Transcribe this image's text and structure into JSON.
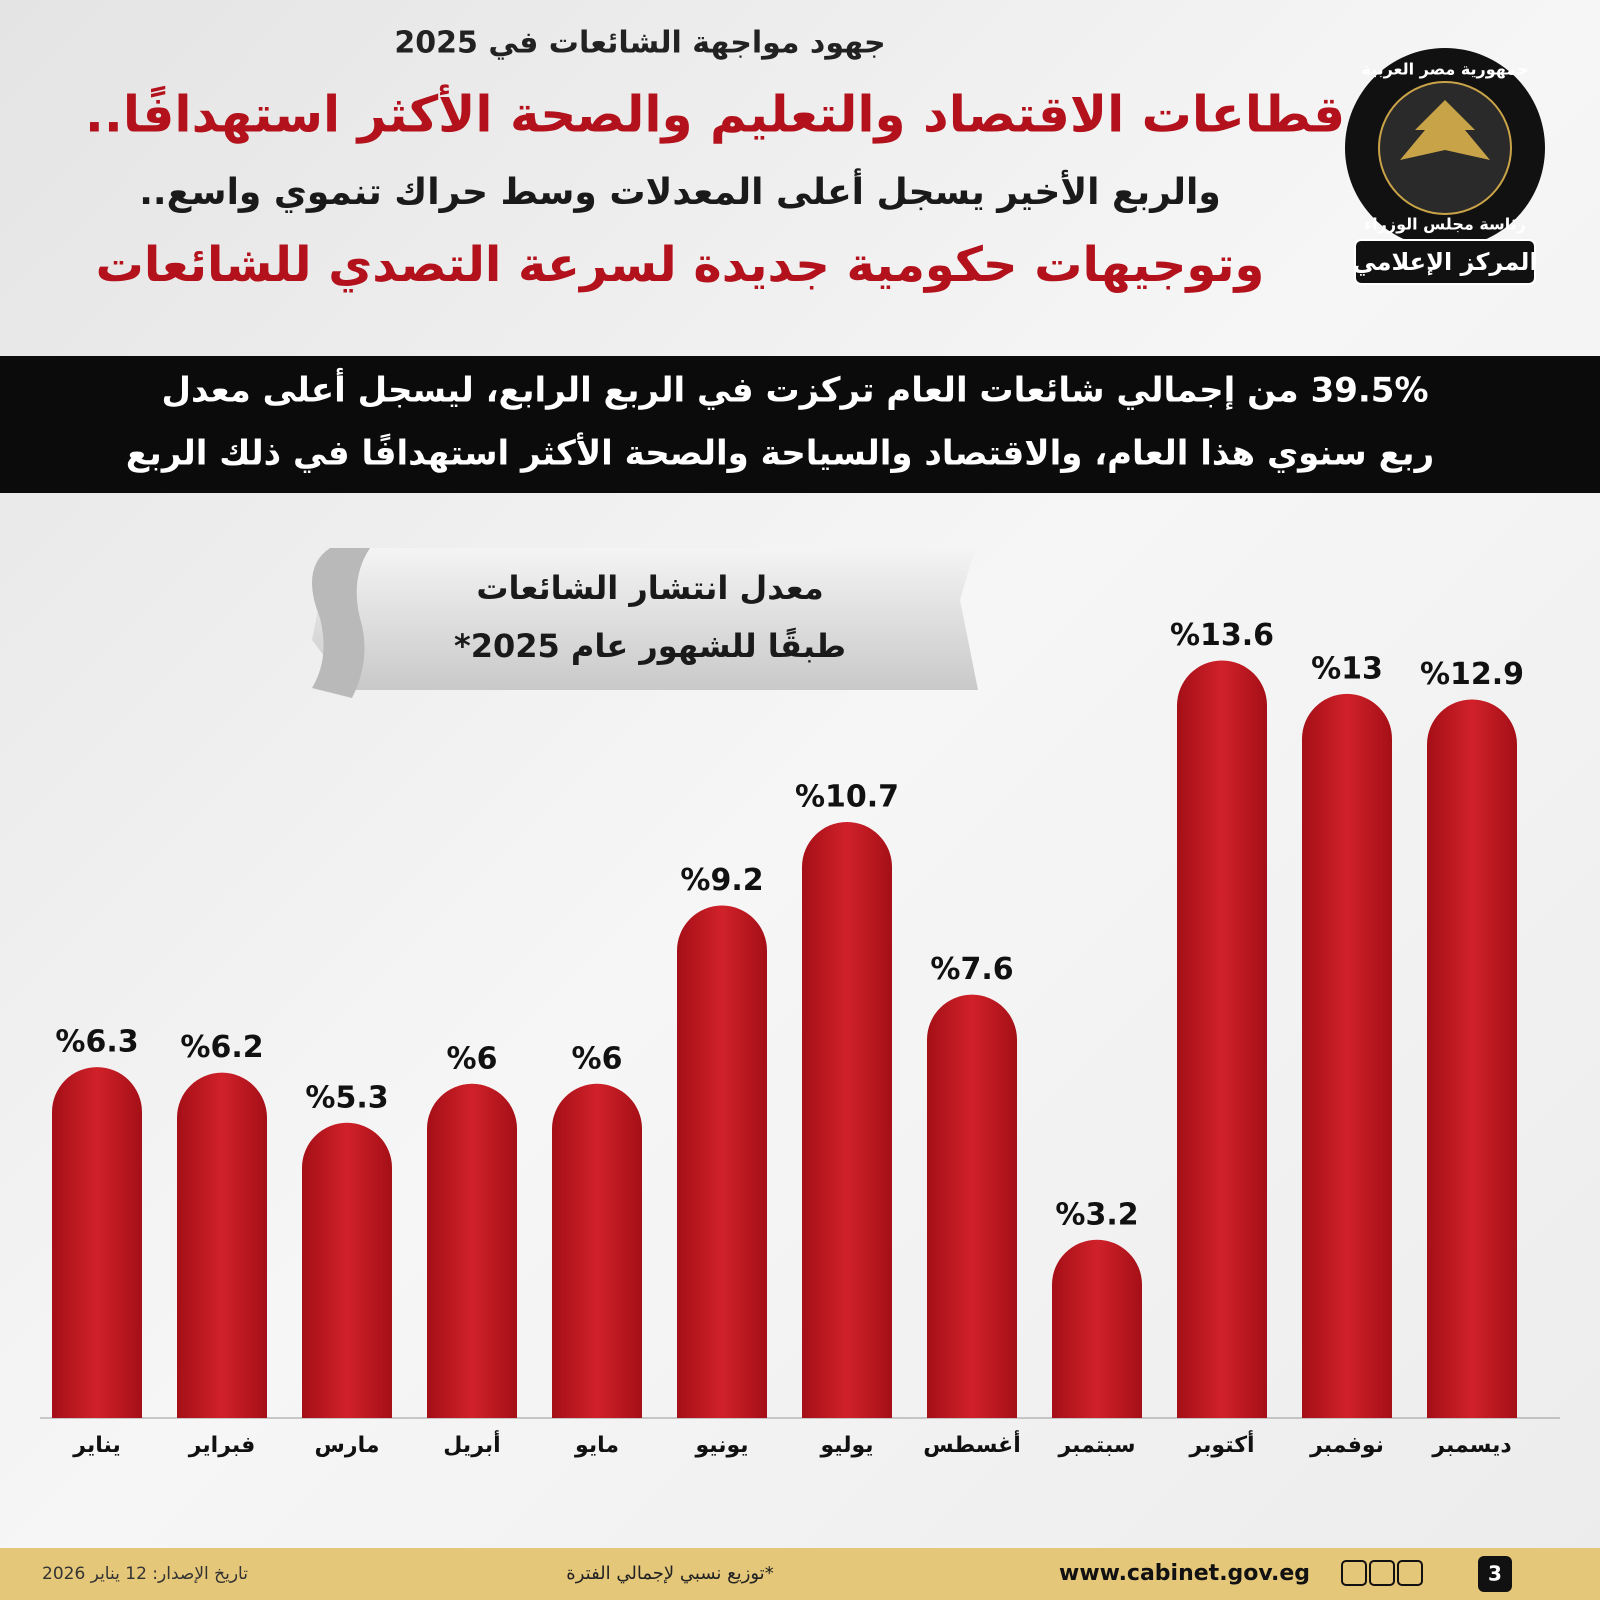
{
  "header": {
    "kicker": "جهود مواجهة الشائعات في 2025",
    "title": "قطاعات الاقتصاد والتعليم والصحة الأكثر استهدافًا..",
    "subtitle": "والربع الأخير يسجل أعلى المعدلات وسط حراك تنموي واسع..",
    "title2": "وتوجيهات حكومية جديدة لسرعة التصدي للشائعات"
  },
  "logo": {
    "top": "جمهورية مصر العربية",
    "ring": "رئاسة مجلس الوزراء",
    "badge": "المركز الإعلامي"
  },
  "summary": {
    "lines": [
      "39.5% من إجمالي شائعات العام تركزت في الربع الرابع، ليسجل أعلى معدل",
      "ربع سنوي هذا العام، والاقتصاد والسياحة والصحة الأكثر استهدافًا في ذلك الربع"
    ]
  },
  "chart_data": {
    "type": "bar",
    "title": "معدل انتشار الشائعات",
    "subtitle": "طبقًا للشهور عام 2025*",
    "categories": [
      "يناير",
      "فبراير",
      "مارس",
      "أبريل",
      "مايو",
      "يونيو",
      "يوليو",
      "أغسطس",
      "سبتمبر",
      "أكتوبر",
      "نوفمبر",
      "ديسمبر"
    ],
    "values": [
      6.3,
      6.2,
      5.3,
      6,
      6,
      9.2,
      10.7,
      7.6,
      3.2,
      13.6,
      13,
      12.9
    ],
    "value_labels": [
      "%6.3",
      "%6.2",
      "%5.3",
      "%6",
      "%6",
      "%9.2",
      "%10.7",
      "%7.6",
      "%3.2",
      "%13.6",
      "%13",
      "%12.9"
    ],
    "color": "#c0161f"
  },
  "footer": {
    "page": "3",
    "url": "www.cabinet.gov.eg",
    "note": "*توزيع نسبي لإجمالي الفترة",
    "date": "تاريخ الإصدار: 12 يناير 2026"
  }
}
